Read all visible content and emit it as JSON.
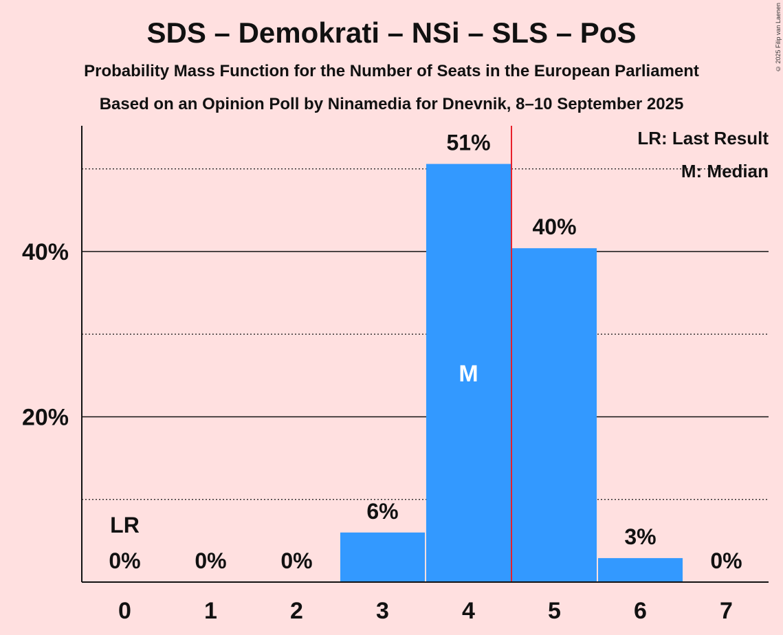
{
  "title": "SDS – Demokrati – NSi – SLS – PoS",
  "subtitle": "Probability Mass Function for the Number of Seats in the European Parliament",
  "subtitle2": "Based on an Opinion Poll by Ninamedia for Dnevnik, 8–10 September 2025",
  "copyright": "© 2025 Filip van Laenen",
  "legend": {
    "lr": "LR: Last Result",
    "m": "M: Median"
  },
  "colors": {
    "background": "#ffe0e0",
    "bar": "#3399ff",
    "median_line": "#e8202a"
  },
  "chart_data": {
    "type": "bar",
    "categories": [
      "0",
      "1",
      "2",
      "3",
      "4",
      "5",
      "6",
      "7"
    ],
    "values": [
      0,
      0,
      0,
      6,
      51,
      40,
      3,
      0
    ],
    "exact_values": [
      0,
      0,
      0,
      6.0,
      50.6,
      40.4,
      2.9,
      0
    ],
    "value_labels": [
      "0%",
      "0%",
      "0%",
      "6%",
      "51%",
      "40%",
      "3%",
      "0%"
    ],
    "ylim": [
      0,
      55
    ],
    "yticks_major": [
      20,
      40
    ],
    "ytick_labels": [
      "20%",
      "40%"
    ],
    "yticks_minor": [
      10,
      30,
      50
    ],
    "last_result_seat": 0,
    "last_result_label": "LR",
    "median_seat": 4,
    "median_label": "M",
    "median_line_between": [
      4,
      5
    ],
    "legend_position": "top-right"
  }
}
